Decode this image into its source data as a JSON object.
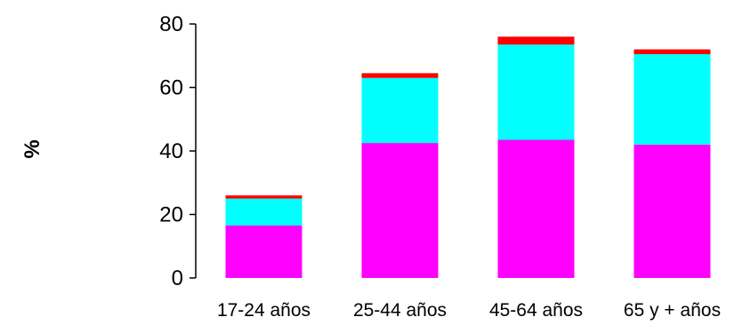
{
  "chart_data": {
    "type": "bar",
    "stacked": true,
    "title": "",
    "xlabel": "",
    "ylabel": "%",
    "ylim": [
      0,
      80
    ],
    "yticks": [
      "0",
      "20",
      "40",
      "60",
      "80"
    ],
    "grid": false,
    "legend": "none",
    "categories": [
      "17-24 años",
      "25-44 años",
      "45-64 años",
      "65 y + años"
    ],
    "series": [
      {
        "color": "#FF00FF",
        "values": [
          16.5,
          42.5,
          43.5,
          42
        ]
      },
      {
        "color": "#00FFFF",
        "values": [
          8.5,
          20.5,
          30,
          28.5
        ]
      },
      {
        "color": "#FF0000",
        "values": [
          1,
          1.5,
          2.5,
          1.5
        ]
      }
    ]
  }
}
